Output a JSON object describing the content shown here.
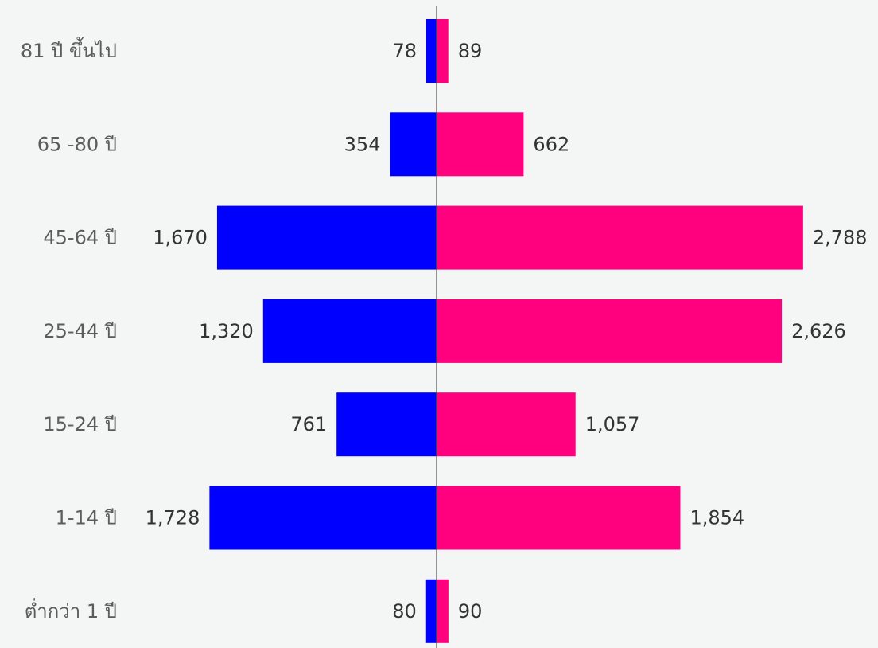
{
  "chart_data": {
    "type": "bar",
    "orientation": "horizontal",
    "layout": "population-pyramid",
    "categories": [
      "81 ปี ขึ้นไป",
      "65 -80 ปี",
      "45-64 ปี",
      "25-44 ปี",
      "15-24 ปี",
      "1-14 ปี",
      "ต่ำกว่า 1 ปี"
    ],
    "category_labels": [
      "81 ปี ขึ้นไป",
      "65 -80 ปี",
      "45-64 ปี",
      "25-44 ปี",
      "15-24 ปี",
      "1-14 ปี",
      "ต่ำกว่า 1 ปี"
    ],
    "series": [
      {
        "side": "left",
        "color": "#0000ff",
        "values": [
          78,
          354,
          1670,
          1320,
          761,
          1728,
          80
        ],
        "labels": [
          "78",
          "354",
          "1,670",
          "1,320",
          "761",
          "1,728",
          "80"
        ]
      },
      {
        "side": "right",
        "color": "#ff007f",
        "values": [
          89,
          662,
          2788,
          2626,
          1057,
          1854,
          90
        ],
        "labels": [
          "89",
          "662",
          "2,788",
          "2,626",
          "1,057",
          "1,854",
          "90"
        ]
      }
    ],
    "title": "",
    "xlabel": "",
    "ylabel": "",
    "grid": false,
    "legend": "none",
    "axis_color": "#555555",
    "background": "#f4f5f5"
  }
}
